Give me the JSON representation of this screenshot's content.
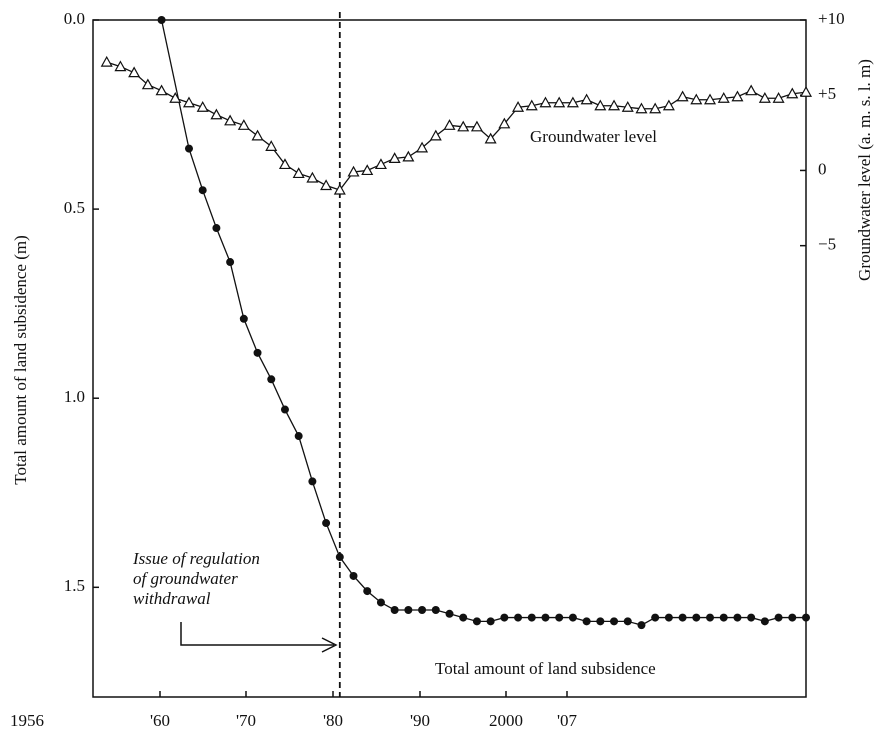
{
  "chart_data": {
    "type": "line",
    "y_label": "Total amount of land subsidence (m)",
    "y2_label": "Groundwater level (a. m. s. l. m)",
    "xlim": [
      1956,
      2008
    ],
    "x_axis_labels": [
      "1956",
      "'60",
      "'70",
      "'80",
      "'90",
      "2000",
      "'07"
    ],
    "ylim": [
      0,
      1.79
    ],
    "y_inverted": true,
    "yticks": [
      {
        "value": 0,
        "label": "0.0"
      },
      0.5,
      {
        "value": 1,
        "label": "1.0"
      },
      1.5
    ],
    "y2lim": [
      -35,
      10
    ],
    "y2ticks": [
      {
        "value": 10,
        "label": "+10"
      },
      {
        "value": 5,
        "label": "+5"
      },
      0,
      {
        "value": -5,
        "label": "−5"
      }
    ],
    "vline": 1974,
    "annotation": [
      "Issue of regulation",
      "of groundwater",
      "withdrawal"
    ],
    "series": [
      {
        "name": "Total amount of land subsidence",
        "color": "#111111",
        "marker": "circle",
        "x": [
          1961,
          1963,
          1964,
          1965,
          1966,
          1967,
          1968,
          1969,
          1970,
          1971,
          1972,
          1973,
          1974,
          1975,
          1976,
          1977,
          1978,
          1979,
          1980,
          1981,
          1982,
          1983,
          1984,
          1985,
          1986,
          1987,
          1988,
          1989,
          1990,
          1991,
          1992,
          1993,
          1994,
          1995,
          1996,
          1997,
          1998,
          1999,
          2000,
          2001,
          2002,
          2003,
          2004,
          2005,
          2006,
          2007,
          2008
        ],
        "values": [
          0.0,
          0.34,
          0.45,
          0.55,
          0.64,
          0.79,
          0.88,
          0.95,
          1.03,
          1.1,
          1.22,
          1.33,
          1.42,
          1.47,
          1.51,
          1.54,
          1.56,
          1.56,
          1.56,
          1.56,
          1.57,
          1.58,
          1.59,
          1.59,
          1.58,
          1.58,
          1.58,
          1.58,
          1.58,
          1.58,
          1.59,
          1.59,
          1.59,
          1.59,
          1.6,
          1.58,
          1.58,
          1.58,
          1.58,
          1.58,
          1.58,
          1.58,
          1.58,
          1.59,
          1.58,
          1.58,
          1.58
        ]
      },
      {
        "name": "Groundwater level",
        "color": "#111111",
        "marker": "triangle",
        "axis": "y2",
        "x": [
          1957,
          1958,
          1959,
          1960,
          1961,
          1962,
          1963,
          1964,
          1965,
          1966,
          1967,
          1968,
          1969,
          1970,
          1971,
          1972,
          1973,
          1974,
          1975,
          1976,
          1977,
          1978,
          1979,
          1980,
          1981,
          1982,
          1983,
          1984,
          1985,
          1986,
          1987,
          1988,
          1989,
          1990,
          1991,
          1992,
          1993,
          1994,
          1995,
          1996,
          1997,
          1998,
          1999,
          2000,
          2001,
          2002,
          2003,
          2004,
          2005,
          2006,
          2007,
          2008
        ],
        "values": [
          7.2,
          6.9,
          6.5,
          5.7,
          5.3,
          4.8,
          4.5,
          4.2,
          3.7,
          3.3,
          3.0,
          2.3,
          1.6,
          0.4,
          -0.2,
          -0.5,
          -1.0,
          -1.3,
          -0.1,
          0.0,
          0.4,
          0.8,
          0.9,
          1.5,
          2.3,
          3.0,
          2.9,
          2.9,
          2.1,
          3.1,
          4.2,
          4.3,
          4.5,
          4.5,
          4.5,
          4.7,
          4.3,
          4.3,
          4.2,
          4.1,
          4.1,
          4.3,
          4.9,
          4.7,
          4.7,
          4.8,
          4.9,
          5.3,
          4.8,
          4.8,
          5.1,
          5.2
        ]
      }
    ]
  }
}
